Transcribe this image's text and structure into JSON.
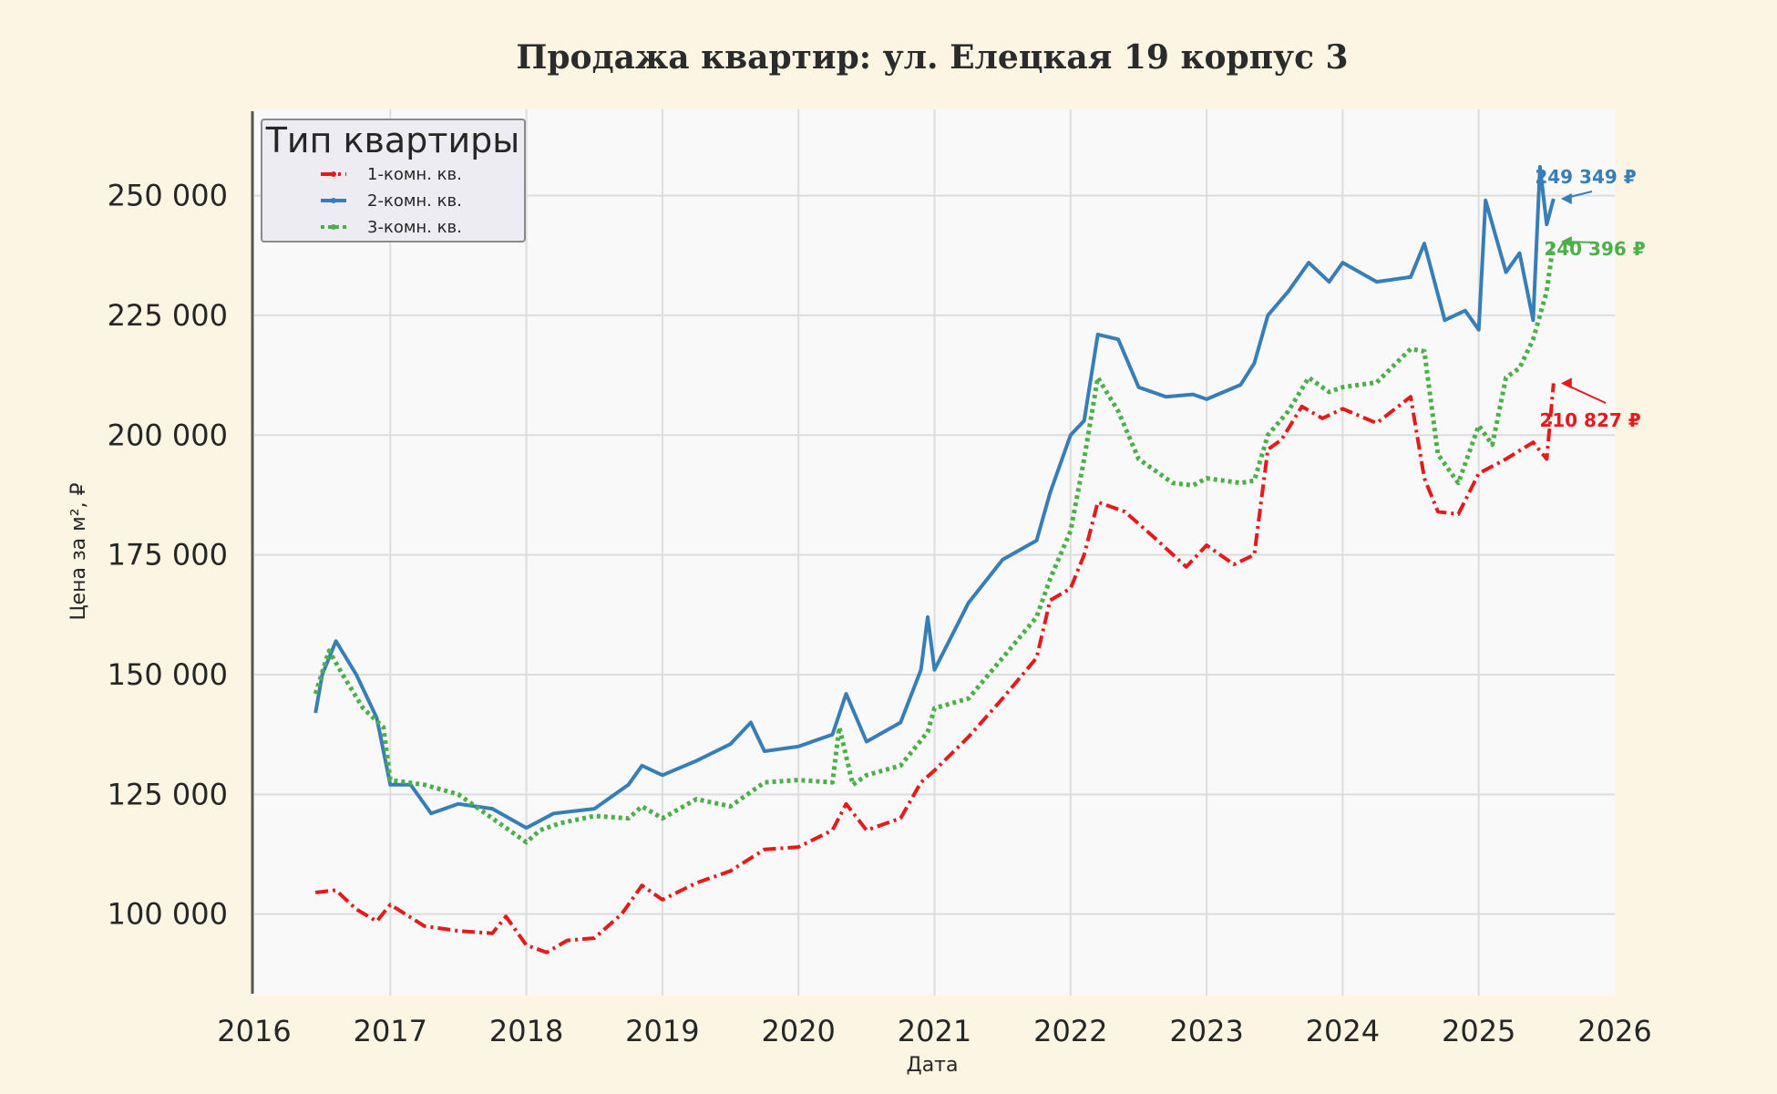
{
  "chart_data": {
    "type": "line",
    "title": "Продажа квартир: ул. Елецкая 19 корпус 3",
    "xlabel": "Дата",
    "ylabel": "Цена за м², ₽",
    "xlim": [
      2016,
      2026
    ],
    "ylim": [
      83000,
      268000
    ],
    "x_ticks": [
      "2016",
      "2017",
      "2018",
      "2019",
      "2020",
      "2021",
      "2022",
      "2023",
      "2024",
      "2025",
      "2026"
    ],
    "y_ticks": [
      {
        "value": 100000,
        "label": "100 000"
      },
      {
        "value": 125000,
        "label": "125 000"
      },
      {
        "value": 150000,
        "label": "150 000"
      },
      {
        "value": 175000,
        "label": "175 000"
      },
      {
        "value": 200000,
        "label": "200 000"
      },
      {
        "value": 225000,
        "label": "225 000"
      },
      {
        "value": 250000,
        "label": "250 000"
      }
    ],
    "grid": true,
    "legend": {
      "title": "Тип квартиры",
      "position": "top-left"
    },
    "series": [
      {
        "name": "1-комн. кв.",
        "color": "#e41a1c",
        "dash": "dash-dot",
        "annotation": "210 827 ₽",
        "x": [
          2016.45,
          2016.6,
          2016.75,
          2016.9,
          2017.0,
          2017.25,
          2017.5,
          2017.75,
          2017.85,
          2018.0,
          2018.15,
          2018.3,
          2018.5,
          2018.7,
          2018.85,
          2019.0,
          2019.25,
          2019.5,
          2019.75,
          2020.0,
          2020.25,
          2020.35,
          2020.5,
          2020.75,
          2020.9,
          2021.0,
          2021.25,
          2021.5,
          2021.75,
          2021.85,
          2022.0,
          2022.1,
          2022.2,
          2022.4,
          2022.6,
          2022.85,
          2023.0,
          2023.2,
          2023.35,
          2023.45,
          2023.55,
          2023.7,
          2023.85,
          2024.0,
          2024.25,
          2024.5,
          2024.6,
          2024.7,
          2024.85,
          2025.0,
          2025.2,
          2025.4,
          2025.5,
          2025.55
        ],
        "y": [
          104500,
          105000,
          101000,
          98500,
          102000,
          97500,
          96500,
          96000,
          99500,
          93500,
          92000,
          94500,
          95000,
          100000,
          106000,
          103000,
          106500,
          109000,
          113500,
          114000,
          117500,
          123000,
          117500,
          120000,
          127500,
          130000,
          137000,
          145000,
          153500,
          165500,
          168000,
          175000,
          186000,
          184000,
          179000,
          172500,
          177000,
          173000,
          175000,
          197000,
          199000,
          206000,
          203500,
          205500,
          202500,
          208000,
          191000,
          184000,
          183500,
          192000,
          195000,
          198500,
          195000,
          210827
        ]
      },
      {
        "name": "2-комн. кв.",
        "color": "#377eb8",
        "dash": "solid",
        "annotation": "249 349 ₽",
        "x": [
          2016.45,
          2016.5,
          2016.6,
          2016.75,
          2016.9,
          2017.0,
          2017.15,
          2017.3,
          2017.5,
          2017.75,
          2018.0,
          2018.2,
          2018.5,
          2018.75,
          2018.85,
          2019.0,
          2019.25,
          2019.5,
          2019.65,
          2019.75,
          2020.0,
          2020.25,
          2020.35,
          2020.5,
          2020.75,
          2020.9,
          2020.95,
          2021.0,
          2021.25,
          2021.5,
          2021.75,
          2021.85,
          2022.0,
          2022.1,
          2022.2,
          2022.35,
          2022.5,
          2022.7,
          2022.9,
          2023.0,
          2023.25,
          2023.35,
          2023.45,
          2023.6,
          2023.75,
          2023.9,
          2024.0,
          2024.25,
          2024.5,
          2024.6,
          2024.75,
          2024.9,
          2025.0,
          2025.05,
          2025.2,
          2025.3,
          2025.4,
          2025.45,
          2025.5,
          2025.55
        ],
        "y": [
          142000,
          150000,
          157000,
          150000,
          141000,
          127000,
          127000,
          121000,
          123000,
          122000,
          118000,
          121000,
          122000,
          127000,
          131000,
          129000,
          132000,
          135500,
          140000,
          134000,
          135000,
          137500,
          146000,
          136000,
          140000,
          151000,
          162000,
          151000,
          165000,
          174000,
          178000,
          188000,
          200000,
          203000,
          221000,
          220000,
          210000,
          208000,
          208500,
          207500,
          210500,
          215000,
          225000,
          230000,
          236000,
          232000,
          236000,
          232000,
          233000,
          240000,
          224000,
          226000,
          222000,
          249000,
          234000,
          238000,
          224000,
          256000,
          244000,
          249349
        ]
      },
      {
        "name": "3-комн. кв.",
        "color": "#4daf4a",
        "dash": "dotted",
        "annotation": "240 396 ₽",
        "x": [
          2016.45,
          2016.55,
          2016.65,
          2016.8,
          2016.95,
          2017.0,
          2017.25,
          2017.5,
          2017.75,
          2018.0,
          2018.1,
          2018.25,
          2018.5,
          2018.75,
          2018.85,
          2019.0,
          2019.25,
          2019.5,
          2019.75,
          2020.0,
          2020.25,
          2020.3,
          2020.4,
          2020.5,
          2020.75,
          2020.95,
          2021.0,
          2021.25,
          2021.5,
          2021.75,
          2021.85,
          2022.0,
          2022.1,
          2022.2,
          2022.35,
          2022.5,
          2022.75,
          2022.9,
          2023.0,
          2023.25,
          2023.35,
          2023.45,
          2023.6,
          2023.75,
          2023.9,
          2024.0,
          2024.25,
          2024.5,
          2024.6,
          2024.7,
          2024.85,
          2025.0,
          2025.1,
          2025.2,
          2025.3,
          2025.4,
          2025.5,
          2025.55
        ],
        "y": [
          146000,
          155000,
          150000,
          143000,
          139000,
          128000,
          127000,
          125000,
          120000,
          115000,
          117500,
          119000,
          120500,
          120000,
          122500,
          120000,
          124000,
          122500,
          127500,
          128000,
          127500,
          139000,
          127000,
          129000,
          131000,
          138000,
          143000,
          145000,
          153500,
          162000,
          170000,
          180000,
          195000,
          212000,
          205000,
          195000,
          190000,
          189500,
          191000,
          190000,
          190500,
          200000,
          205000,
          212000,
          209000,
          210000,
          211000,
          218000,
          217500,
          196000,
          190000,
          202000,
          198000,
          212000,
          214000,
          220000,
          230000,
          240396
        ]
      }
    ]
  }
}
